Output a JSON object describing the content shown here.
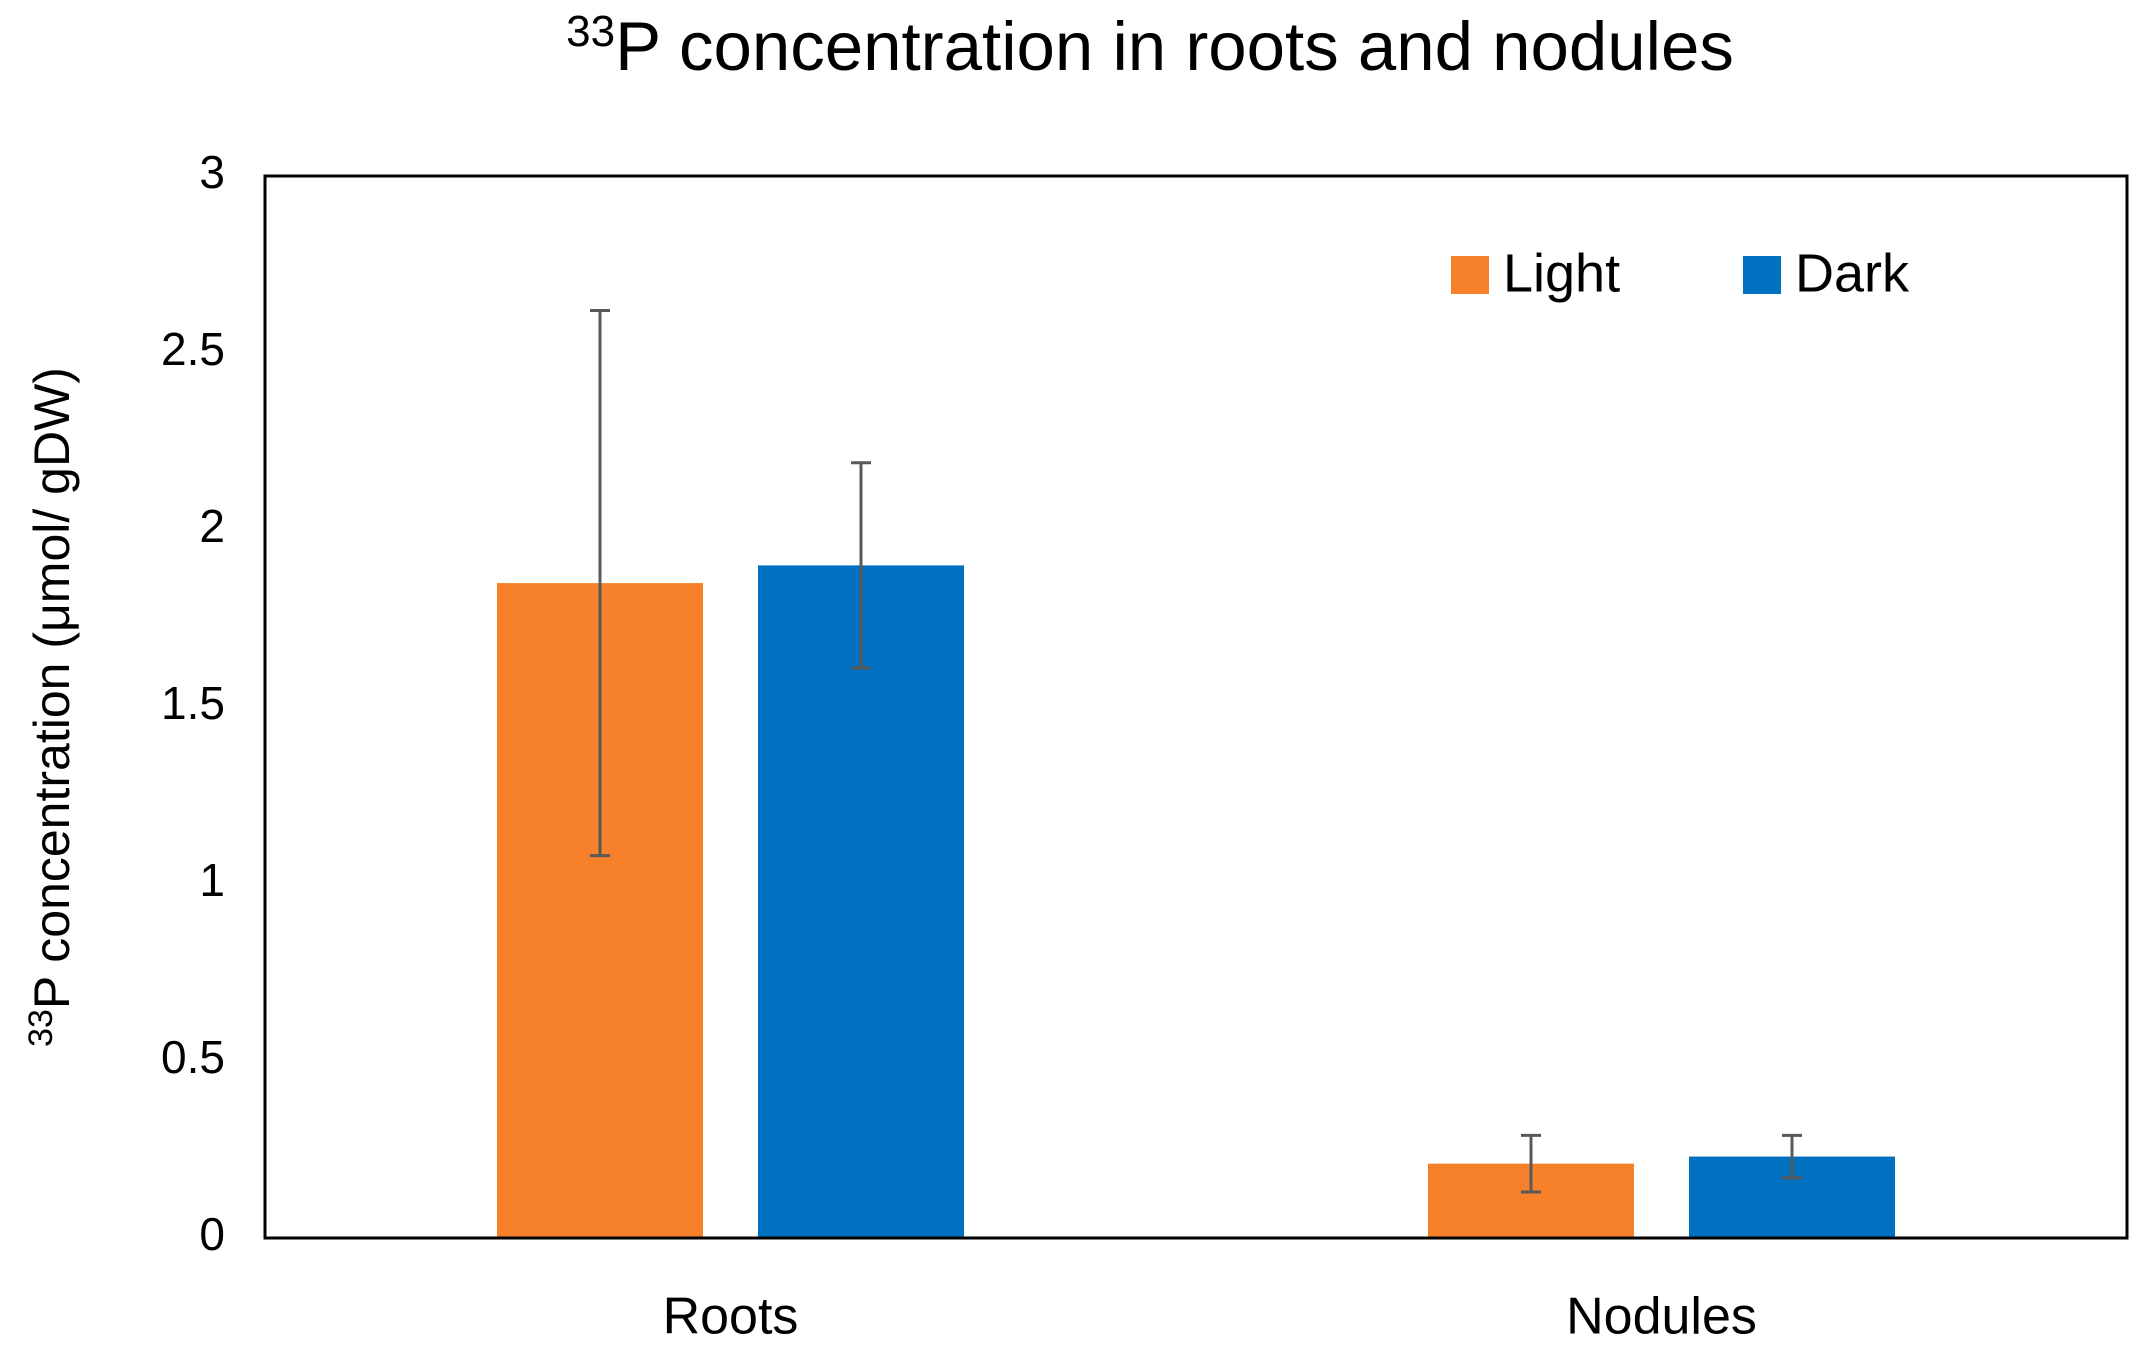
{
  "chart_data": {
    "type": "bar",
    "title": [
      "33",
      "P concentration in roots and nodules"
    ],
    "ylabel": [
      "33",
      "P concentration (μmol/ gDW)"
    ],
    "categories": [
      "Roots",
      "Nodules"
    ],
    "series": [
      {
        "name": "Light",
        "color": "#f7812a",
        "values": [
          1.85,
          0.21
        ],
        "errors": [
          0.77,
          0.08
        ]
      },
      {
        "name": "Dark",
        "color": "#0070c0",
        "values": [
          1.9,
          0.23
        ],
        "errors": [
          0.29,
          0.06
        ]
      }
    ],
    "ylim": [
      0,
      3
    ],
    "yticks": [
      0,
      0.5,
      1,
      1.5,
      2,
      2.5,
      3
    ],
    "grid": false,
    "legend": "upper right"
  }
}
